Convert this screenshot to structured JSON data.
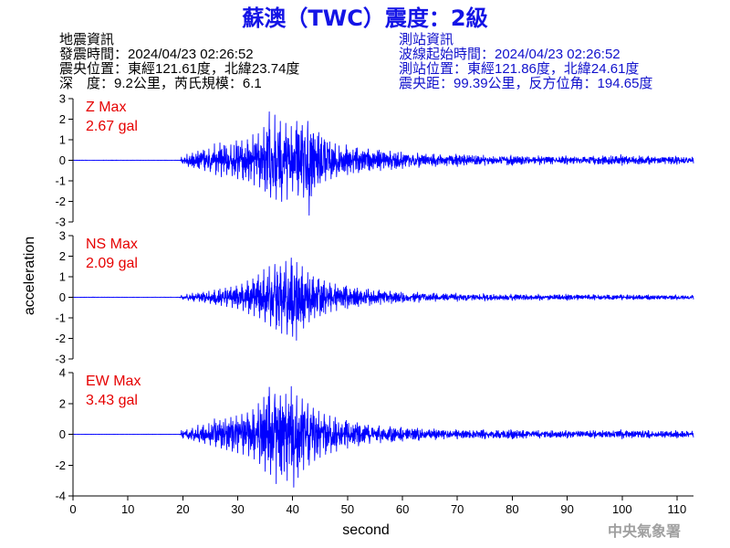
{
  "title": "蘇澳（TWC）震度：2級",
  "earthquake_info": {
    "heading": "地震資訊",
    "origin_time": "發震時間：2024/04/23 02:26:52",
    "epicenter": "震央位置：東經121.61度，北緯23.74度",
    "depth_magnitude": "深　度：9.2公里，芮氏規模：6.1"
  },
  "station_info": {
    "heading": "測站資訊",
    "waveform_start_time": "波線起始時間：2024/04/23 02:26:52",
    "station_location": "測站位置：東經121.86度，北緯24.61度",
    "distance_azimuth": "震央距：99.39公里，反方位角：194.65度"
  },
  "agency": "中央氣象署",
  "colors": {
    "title": "#1414e6",
    "earthquake_info": "#000000",
    "station_info": "#1010cc",
    "max_label": "#e60000",
    "waveform": "#0000ff",
    "agency": "#a0a0a0"
  },
  "chart_data": {
    "type": "line",
    "xlabel": "second",
    "ylabel": "acceleration",
    "xlim": [
      0,
      113
    ],
    "xticks": [
      0,
      10,
      20,
      30,
      40,
      50,
      60,
      70,
      80,
      90,
      100,
      110
    ],
    "grid": false,
    "envelope_t": [
      0,
      19.4,
      20,
      21,
      22,
      23,
      24,
      25,
      26,
      27,
      28,
      29,
      30,
      31,
      32,
      33,
      34,
      35,
      36,
      37,
      38,
      39,
      40,
      41,
      42,
      43,
      44,
      45,
      46,
      47,
      48,
      50,
      52,
      54,
      56,
      58,
      60,
      63,
      66,
      70,
      75,
      80,
      85,
      90,
      95,
      100,
      105,
      110,
      113
    ],
    "series": [
      {
        "label": "Z Max",
        "max": "2.67 gal",
        "ylim": [
          -3,
          3
        ],
        "yticks": [
          -3,
          -2,
          -1,
          0,
          1,
          2,
          3
        ],
        "peak": {
          "t": 43.0,
          "value": -2.67
        },
        "upper_envelope": [
          0.01,
          0.01,
          0.15,
          0.3,
          0.35,
          0.45,
          0.5,
          0.55,
          0.8,
          0.85,
          0.7,
          0.75,
          0.95,
          0.95,
          1.0,
          1.25,
          1.3,
          1.6,
          2.36,
          2.2,
          1.9,
          1.8,
          1.65,
          1.9,
          1.7,
          1.9,
          1.3,
          1.35,
          1.0,
          0.9,
          0.8,
          0.75,
          0.6,
          0.55,
          0.5,
          0.45,
          0.4,
          0.35,
          0.3,
          0.3,
          0.25,
          0.25,
          0.22,
          0.22,
          0.2,
          0.28,
          0.2,
          0.2,
          0.15
        ],
        "lower_envelope": [
          -0.01,
          -0.01,
          -0.15,
          -0.3,
          -0.35,
          -0.4,
          -0.5,
          -0.55,
          -0.7,
          -0.8,
          -0.7,
          -0.75,
          -0.9,
          -0.95,
          -1.0,
          -1.2,
          -1.3,
          -1.5,
          -1.8,
          -1.9,
          -2.0,
          -1.9,
          -1.5,
          -1.7,
          -1.8,
          -2.67,
          -1.3,
          -1.1,
          -1.0,
          -0.9,
          -0.8,
          -0.7,
          -0.6,
          -0.5,
          -0.5,
          -0.45,
          -0.4,
          -0.35,
          -0.3,
          -0.3,
          -0.25,
          -0.25,
          -0.22,
          -0.2,
          -0.2,
          -0.25,
          -0.2,
          -0.2,
          -0.15
        ]
      },
      {
        "label": "NS Max",
        "max": "2.09 gal",
        "ylim": [
          -3,
          3
        ],
        "yticks": [
          -3,
          -2,
          -1,
          0,
          1,
          2,
          3
        ],
        "peak": {
          "t": 40.7,
          "value": -2.09
        },
        "upper_envelope": [
          0.01,
          0.01,
          0.1,
          0.15,
          0.2,
          0.2,
          0.25,
          0.3,
          0.35,
          0.4,
          0.45,
          0.5,
          0.55,
          0.65,
          0.8,
          0.9,
          1.1,
          1.35,
          1.5,
          1.6,
          1.5,
          1.75,
          1.91,
          1.7,
          1.5,
          1.2,
          1.0,
          0.9,
          0.8,
          0.7,
          0.65,
          0.55,
          0.45,
          0.4,
          0.35,
          0.3,
          0.25,
          0.25,
          0.2,
          0.2,
          0.18,
          0.15,
          0.15,
          0.15,
          0.13,
          0.13,
          0.12,
          0.12,
          0.1
        ],
        "lower_envelope": [
          -0.01,
          -0.01,
          -0.1,
          -0.15,
          -0.2,
          -0.2,
          -0.25,
          -0.3,
          -0.35,
          -0.4,
          -0.45,
          -0.5,
          -0.55,
          -0.65,
          -0.8,
          -0.9,
          -1.0,
          -1.2,
          -1.4,
          -1.55,
          -1.75,
          -1.8,
          -1.9,
          -2.09,
          -1.5,
          -1.2,
          -1.0,
          -0.9,
          -0.8,
          -0.7,
          -0.65,
          -0.55,
          -0.45,
          -0.4,
          -0.35,
          -0.3,
          -0.25,
          -0.25,
          -0.2,
          -0.2,
          -0.18,
          -0.15,
          -0.15,
          -0.15,
          -0.13,
          -0.13,
          -0.12,
          -0.12,
          -0.1
        ]
      },
      {
        "label": "EW Max",
        "max": "3.43 gal",
        "ylim": [
          -4,
          4
        ],
        "yticks": [
          -4,
          -2,
          0,
          2,
          4
        ],
        "peak": {
          "t": 40.2,
          "value": -3.43
        },
        "upper_envelope": [
          0.01,
          0.01,
          0.25,
          0.3,
          0.4,
          0.6,
          0.6,
          0.7,
          1.0,
          0.9,
          1.0,
          1.1,
          1.2,
          1.3,
          1.4,
          1.6,
          2.0,
          2.4,
          3.05,
          2.6,
          2.5,
          2.6,
          3.1,
          2.5,
          2.3,
          2.0,
          1.7,
          1.5,
          1.3,
          1.2,
          1.1,
          0.9,
          0.75,
          0.6,
          0.55,
          0.5,
          0.45,
          0.4,
          0.35,
          0.3,
          0.3,
          0.3,
          0.25,
          0.25,
          0.25,
          0.3,
          0.25,
          0.25,
          0.2
        ],
        "lower_envelope": [
          -0.01,
          -0.01,
          -0.25,
          -0.3,
          -0.4,
          -0.5,
          -0.6,
          -0.7,
          -0.8,
          -0.9,
          -1.0,
          -1.1,
          -1.2,
          -1.3,
          -1.4,
          -1.6,
          -1.9,
          -2.4,
          -2.6,
          -3.2,
          -2.6,
          -3.0,
          -3.43,
          -2.8,
          -2.3,
          -2.0,
          -1.7,
          -1.5,
          -1.3,
          -1.2,
          -1.1,
          -0.9,
          -0.75,
          -0.6,
          -0.55,
          -0.5,
          -0.45,
          -0.4,
          -0.35,
          -0.3,
          -0.3,
          -0.3,
          -0.25,
          -0.25,
          -0.25,
          -0.3,
          -0.25,
          -0.25,
          -0.2
        ]
      }
    ]
  }
}
